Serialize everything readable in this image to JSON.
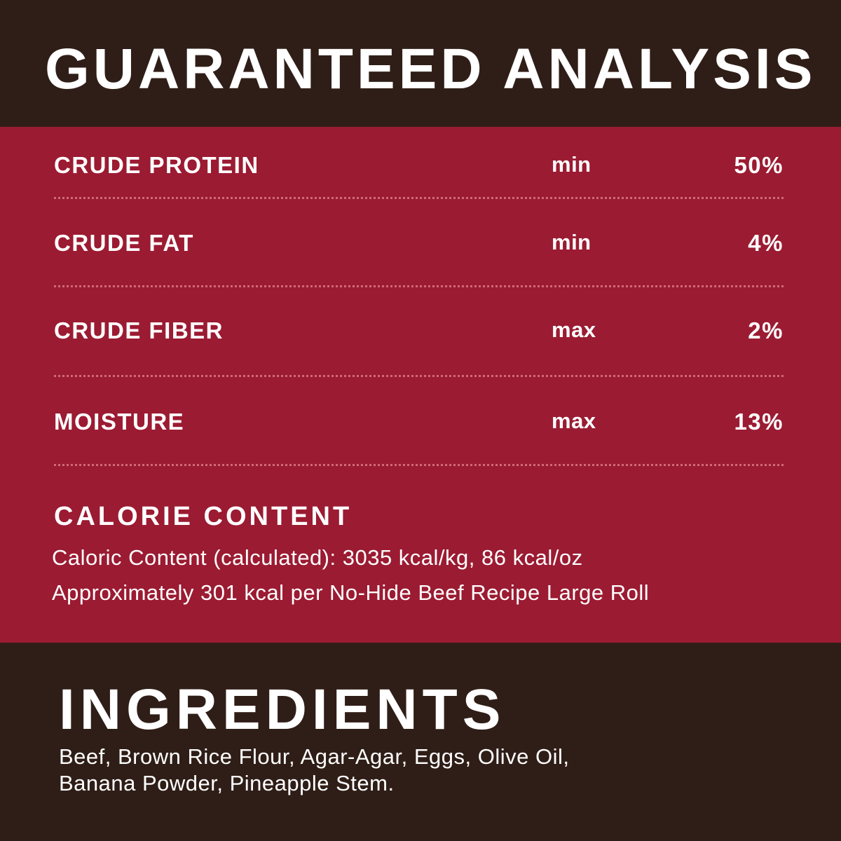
{
  "colors": {
    "background": "#2f1e17",
    "band": "#9b1b32",
    "text": "#ffffff"
  },
  "title": "GUARANTEED ANALYSIS",
  "analysis": [
    {
      "label": "CRUDE PROTEIN",
      "qualifier": "min",
      "value": "50%"
    },
    {
      "label": "CRUDE FAT",
      "qualifier": "min",
      "value": "4%"
    },
    {
      "label": "CRUDE FIBER",
      "qualifier": "max",
      "value": "2%"
    },
    {
      "label": "MOISTURE",
      "qualifier": "max",
      "value": "13%"
    }
  ],
  "calorie": {
    "title": "CALORIE CONTENT",
    "lines": [
      "Caloric Content (calculated): 3035 kcal/kg, 86 kcal/oz",
      "Approximately 301 kcal per No-Hide Beef Recipe Large Roll"
    ]
  },
  "ingredients": {
    "title": "INGREDIENTS",
    "lines": [
      "Beef, Brown Rice Flour, Agar-Agar, Eggs, Olive Oil,",
      "Banana Powder, Pineapple Stem."
    ]
  }
}
